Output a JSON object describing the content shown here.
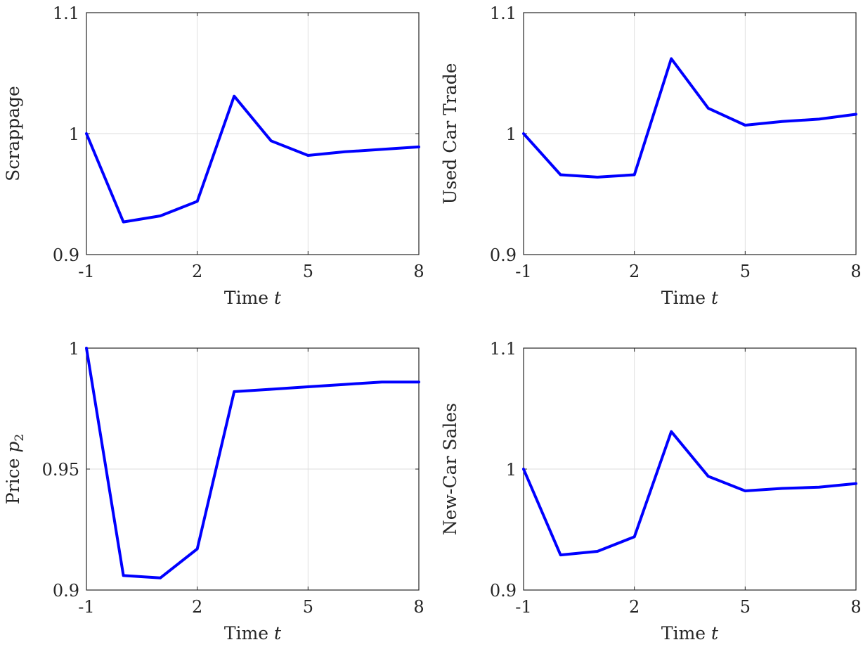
{
  "chart_data": [
    {
      "type": "line",
      "xlabel": "Time",
      "xlabel_var": "t",
      "ylabel": "Scrappage",
      "xlim": [
        -1,
        8
      ],
      "ylim": [
        0.9,
        1.1
      ],
      "xticks": [
        -1,
        2,
        5,
        8
      ],
      "xtick_labels": [
        "-1",
        "2",
        "5",
        "8"
      ],
      "yticks": [
        0.9,
        1,
        1.1
      ],
      "ytick_labels": [
        "0.9",
        "1",
        "1.1"
      ],
      "grid": true,
      "line_color": "#0000ff",
      "x": [
        -1,
        0,
        1,
        2,
        3,
        4,
        5,
        6,
        7,
        8
      ],
      "y": [
        1.0,
        0.927,
        0.932,
        0.944,
        1.031,
        0.994,
        0.982,
        0.985,
        0.987,
        0.989
      ]
    },
    {
      "type": "line",
      "xlabel": "Time",
      "xlabel_var": "t",
      "ylabel": "Used Car Trade",
      "xlim": [
        -1,
        8
      ],
      "ylim": [
        0.9,
        1.1
      ],
      "xticks": [
        -1,
        2,
        5,
        8
      ],
      "xtick_labels": [
        "-1",
        "2",
        "5",
        "8"
      ],
      "yticks": [
        0.9,
        1,
        1.1
      ],
      "ytick_labels": [
        "0.9",
        "1",
        "1.1"
      ],
      "grid": true,
      "line_color": "#0000ff",
      "x": [
        -1,
        0,
        1,
        2,
        3,
        4,
        5,
        6,
        7,
        8
      ],
      "y": [
        1.0,
        0.966,
        0.964,
        0.966,
        1.062,
        1.021,
        1.007,
        1.01,
        1.012,
        1.016
      ]
    },
    {
      "type": "line",
      "xlabel": "Time",
      "xlabel_var": "t",
      "ylabel": "Price",
      "ylabel_var": "p",
      "ylabel_sub": "2",
      "xlim": [
        -1,
        8
      ],
      "ylim": [
        0.9,
        1.0
      ],
      "xticks": [
        -1,
        2,
        5,
        8
      ],
      "xtick_labels": [
        "-1",
        "2",
        "5",
        "8"
      ],
      "yticks": [
        0.9,
        0.95,
        1
      ],
      "ytick_labels": [
        "0.9",
        "0.95",
        "1"
      ],
      "grid": true,
      "line_color": "#0000ff",
      "x": [
        -1,
        0,
        1,
        2,
        3,
        4,
        5,
        6,
        7,
        8
      ],
      "y": [
        1.0,
        0.906,
        0.905,
        0.917,
        0.982,
        0.983,
        0.984,
        0.985,
        0.986,
        0.986
      ]
    },
    {
      "type": "line",
      "xlabel": "Time",
      "xlabel_var": "t",
      "ylabel": "New-Car Sales",
      "xlim": [
        -1,
        8
      ],
      "ylim": [
        0.9,
        1.1
      ],
      "xticks": [
        -1,
        2,
        5,
        8
      ],
      "xtick_labels": [
        "-1",
        "2",
        "5",
        "8"
      ],
      "yticks": [
        0.9,
        1,
        1.1
      ],
      "ytick_labels": [
        "0.9",
        "1",
        "1.1"
      ],
      "grid": true,
      "line_color": "#0000ff",
      "x": [
        -1,
        0,
        1,
        2,
        3,
        4,
        5,
        6,
        7,
        8
      ],
      "y": [
        1.0,
        0.929,
        0.932,
        0.944,
        1.031,
        0.994,
        0.982,
        0.984,
        0.985,
        0.988
      ]
    }
  ]
}
